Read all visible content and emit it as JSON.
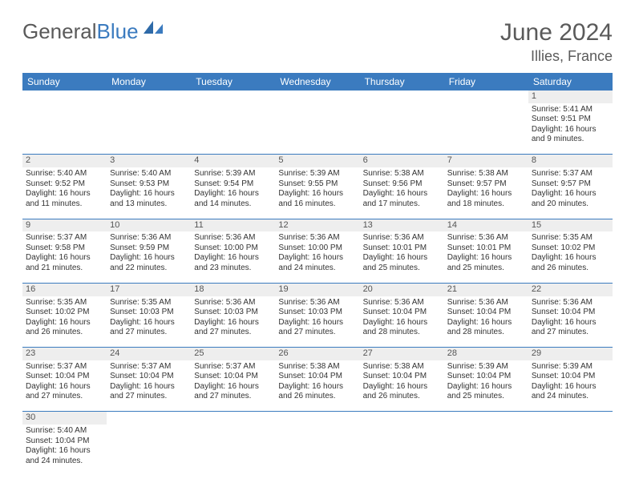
{
  "logo": {
    "main": "General",
    "sub": "Blue"
  },
  "title": "June 2024",
  "location": "Illies, France",
  "colors": {
    "header_bg": "#3b7bbf",
    "header_text": "#ffffff",
    "daynum_bg": "#eeeeee",
    "border": "#3b7bbf",
    "title_color": "#5a5a5a"
  },
  "weekdays": [
    "Sunday",
    "Monday",
    "Tuesday",
    "Wednesday",
    "Thursday",
    "Friday",
    "Saturday"
  ],
  "weeks": [
    {
      "days": [
        null,
        null,
        null,
        null,
        null,
        null,
        {
          "n": "1",
          "sunrise": "Sunrise: 5:41 AM",
          "sunset": "Sunset: 9:51 PM",
          "day1": "Daylight: 16 hours",
          "day2": "and 9 minutes."
        }
      ]
    },
    {
      "days": [
        {
          "n": "2",
          "sunrise": "Sunrise: 5:40 AM",
          "sunset": "Sunset: 9:52 PM",
          "day1": "Daylight: 16 hours",
          "day2": "and 11 minutes."
        },
        {
          "n": "3",
          "sunrise": "Sunrise: 5:40 AM",
          "sunset": "Sunset: 9:53 PM",
          "day1": "Daylight: 16 hours",
          "day2": "and 13 minutes."
        },
        {
          "n": "4",
          "sunrise": "Sunrise: 5:39 AM",
          "sunset": "Sunset: 9:54 PM",
          "day1": "Daylight: 16 hours",
          "day2": "and 14 minutes."
        },
        {
          "n": "5",
          "sunrise": "Sunrise: 5:39 AM",
          "sunset": "Sunset: 9:55 PM",
          "day1": "Daylight: 16 hours",
          "day2": "and 16 minutes."
        },
        {
          "n": "6",
          "sunrise": "Sunrise: 5:38 AM",
          "sunset": "Sunset: 9:56 PM",
          "day1": "Daylight: 16 hours",
          "day2": "and 17 minutes."
        },
        {
          "n": "7",
          "sunrise": "Sunrise: 5:38 AM",
          "sunset": "Sunset: 9:57 PM",
          "day1": "Daylight: 16 hours",
          "day2": "and 18 minutes."
        },
        {
          "n": "8",
          "sunrise": "Sunrise: 5:37 AM",
          "sunset": "Sunset: 9:57 PM",
          "day1": "Daylight: 16 hours",
          "day2": "and 20 minutes."
        }
      ]
    },
    {
      "days": [
        {
          "n": "9",
          "sunrise": "Sunrise: 5:37 AM",
          "sunset": "Sunset: 9:58 PM",
          "day1": "Daylight: 16 hours",
          "day2": "and 21 minutes."
        },
        {
          "n": "10",
          "sunrise": "Sunrise: 5:36 AM",
          "sunset": "Sunset: 9:59 PM",
          "day1": "Daylight: 16 hours",
          "day2": "and 22 minutes."
        },
        {
          "n": "11",
          "sunrise": "Sunrise: 5:36 AM",
          "sunset": "Sunset: 10:00 PM",
          "day1": "Daylight: 16 hours",
          "day2": "and 23 minutes."
        },
        {
          "n": "12",
          "sunrise": "Sunrise: 5:36 AM",
          "sunset": "Sunset: 10:00 PM",
          "day1": "Daylight: 16 hours",
          "day2": "and 24 minutes."
        },
        {
          "n": "13",
          "sunrise": "Sunrise: 5:36 AM",
          "sunset": "Sunset: 10:01 PM",
          "day1": "Daylight: 16 hours",
          "day2": "and 25 minutes."
        },
        {
          "n": "14",
          "sunrise": "Sunrise: 5:36 AM",
          "sunset": "Sunset: 10:01 PM",
          "day1": "Daylight: 16 hours",
          "day2": "and 25 minutes."
        },
        {
          "n": "15",
          "sunrise": "Sunrise: 5:35 AM",
          "sunset": "Sunset: 10:02 PM",
          "day1": "Daylight: 16 hours",
          "day2": "and 26 minutes."
        }
      ]
    },
    {
      "days": [
        {
          "n": "16",
          "sunrise": "Sunrise: 5:35 AM",
          "sunset": "Sunset: 10:02 PM",
          "day1": "Daylight: 16 hours",
          "day2": "and 26 minutes."
        },
        {
          "n": "17",
          "sunrise": "Sunrise: 5:35 AM",
          "sunset": "Sunset: 10:03 PM",
          "day1": "Daylight: 16 hours",
          "day2": "and 27 minutes."
        },
        {
          "n": "18",
          "sunrise": "Sunrise: 5:36 AM",
          "sunset": "Sunset: 10:03 PM",
          "day1": "Daylight: 16 hours",
          "day2": "and 27 minutes."
        },
        {
          "n": "19",
          "sunrise": "Sunrise: 5:36 AM",
          "sunset": "Sunset: 10:03 PM",
          "day1": "Daylight: 16 hours",
          "day2": "and 27 minutes."
        },
        {
          "n": "20",
          "sunrise": "Sunrise: 5:36 AM",
          "sunset": "Sunset: 10:04 PM",
          "day1": "Daylight: 16 hours",
          "day2": "and 28 minutes."
        },
        {
          "n": "21",
          "sunrise": "Sunrise: 5:36 AM",
          "sunset": "Sunset: 10:04 PM",
          "day1": "Daylight: 16 hours",
          "day2": "and 28 minutes."
        },
        {
          "n": "22",
          "sunrise": "Sunrise: 5:36 AM",
          "sunset": "Sunset: 10:04 PM",
          "day1": "Daylight: 16 hours",
          "day2": "and 27 minutes."
        }
      ]
    },
    {
      "days": [
        {
          "n": "23",
          "sunrise": "Sunrise: 5:37 AM",
          "sunset": "Sunset: 10:04 PM",
          "day1": "Daylight: 16 hours",
          "day2": "and 27 minutes."
        },
        {
          "n": "24",
          "sunrise": "Sunrise: 5:37 AM",
          "sunset": "Sunset: 10:04 PM",
          "day1": "Daylight: 16 hours",
          "day2": "and 27 minutes."
        },
        {
          "n": "25",
          "sunrise": "Sunrise: 5:37 AM",
          "sunset": "Sunset: 10:04 PM",
          "day1": "Daylight: 16 hours",
          "day2": "and 27 minutes."
        },
        {
          "n": "26",
          "sunrise": "Sunrise: 5:38 AM",
          "sunset": "Sunset: 10:04 PM",
          "day1": "Daylight: 16 hours",
          "day2": "and 26 minutes."
        },
        {
          "n": "27",
          "sunrise": "Sunrise: 5:38 AM",
          "sunset": "Sunset: 10:04 PM",
          "day1": "Daylight: 16 hours",
          "day2": "and 26 minutes."
        },
        {
          "n": "28",
          "sunrise": "Sunrise: 5:39 AM",
          "sunset": "Sunset: 10:04 PM",
          "day1": "Daylight: 16 hours",
          "day2": "and 25 minutes."
        },
        {
          "n": "29",
          "sunrise": "Sunrise: 5:39 AM",
          "sunset": "Sunset: 10:04 PM",
          "day1": "Daylight: 16 hours",
          "day2": "and 24 minutes."
        }
      ]
    },
    {
      "days": [
        {
          "n": "30",
          "sunrise": "Sunrise: 5:40 AM",
          "sunset": "Sunset: 10:04 PM",
          "day1": "Daylight: 16 hours",
          "day2": "and 24 minutes."
        },
        null,
        null,
        null,
        null,
        null,
        null
      ]
    }
  ]
}
